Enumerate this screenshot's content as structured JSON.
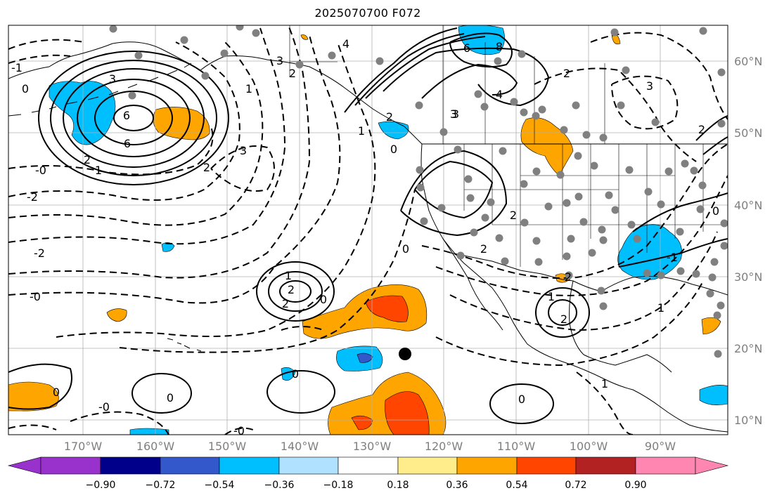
{
  "title": "2025070700 F072",
  "latitude_labels": [
    "60°N",
    "50°N",
    "40°N",
    "30°N",
    "20°N",
    "10°N"
  ],
  "longitude_labels": [
    "170°W",
    "160°W",
    "150°W",
    "140°W",
    "130°W",
    "120°W",
    "110°W",
    "100°W",
    "90°W"
  ],
  "colorbar": {
    "colors": [
      "#9932cc",
      "#00008b",
      "#3358cc",
      "#00bfff",
      "#b0e2ff",
      "#ffffff",
      "#ffec8b",
      "#ffa500",
      "#ff4500",
      "#b22222",
      "#ff86b0"
    ],
    "tick_labels": [
      "−0.90",
      "−0.72",
      "−0.54",
      "−0.36",
      "−0.18",
      "0.18",
      "0.36",
      "0.54",
      "0.72",
      "0.90"
    ]
  },
  "contour_labels": {
    "aleutian_low": [
      "3",
      "6",
      "2",
      "1",
      "0",
      "-1",
      "-2",
      "6"
    ],
    "alaska_gulf": [
      "3",
      "2",
      "1",
      "3",
      "4",
      "2"
    ],
    "canada_high": [
      "4",
      "8",
      "6",
      "3",
      "2",
      "1"
    ],
    "subtropical": [
      "1",
      "2",
      "0",
      "2",
      "-2",
      "-0",
      "-0",
      "0",
      "-0",
      "0",
      "0",
      "0",
      "-0"
    ],
    "mexico": [
      "1",
      "2",
      "0",
      "1",
      "2"
    ],
    "east_us": [
      "3",
      "2",
      "0",
      "-1",
      "2",
      "1"
    ],
    "west_us": [
      "2",
      "3",
      "2",
      "0"
    ]
  }
}
